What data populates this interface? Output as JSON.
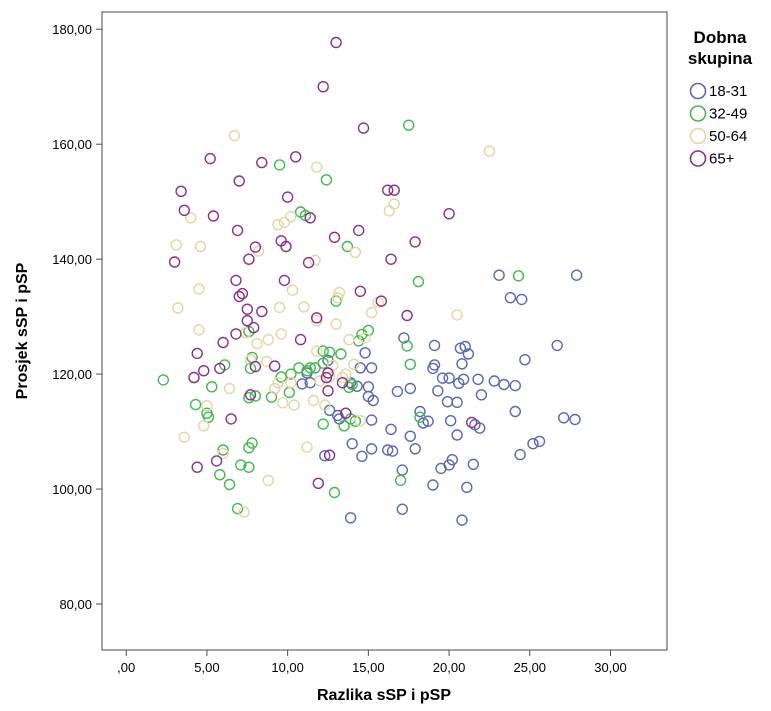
{
  "chart_data": {
    "type": "scatter",
    "xlabel": "Razlika sSP i pSP",
    "ylabel": "Prosjek sSP i pSP",
    "xlim": [
      -1.5,
      33.5
    ],
    "ylim": [
      72,
      183
    ],
    "x_ticks": [
      0,
      5,
      10,
      15,
      20,
      25,
      30
    ],
    "x_tick_labels": [
      ",00",
      "5,00",
      "10,00",
      "15,00",
      "20,00",
      "25,00",
      "30,00"
    ],
    "y_ticks": [
      80,
      100,
      120,
      140,
      160,
      180
    ],
    "y_tick_labels": [
      "80,00",
      "100,00",
      "120,00",
      "140,00",
      "160,00",
      "180,00"
    ],
    "grid": false,
    "legend": {
      "title_lines": [
        "Dobna",
        "skupina"
      ],
      "position": "right"
    },
    "marker": "open-circle",
    "series": [
      {
        "name": "18-31",
        "color": "#5b67b4",
        "points": [
          [
            13.9,
            95.0
          ],
          [
            17.1,
            96.5
          ],
          [
            20.8,
            94.6
          ],
          [
            12.3,
            105.8
          ],
          [
            14.0,
            107.9
          ],
          [
            14.6,
            105.7
          ],
          [
            15.2,
            107.0
          ],
          [
            16.2,
            106.8
          ],
          [
            16.5,
            106.6
          ],
          [
            17.1,
            103.3
          ],
          [
            17.6,
            109.2
          ],
          [
            17.9,
            107.0
          ],
          [
            18.4,
            111.5
          ],
          [
            18.2,
            113.5
          ],
          [
            18.7,
            111.8
          ],
          [
            19.0,
            100.7
          ],
          [
            19.5,
            103.6
          ],
          [
            20.0,
            104.2
          ],
          [
            20.1,
            111.9
          ],
          [
            20.5,
            109.4
          ],
          [
            20.5,
            115.1
          ],
          [
            20.2,
            105.1
          ],
          [
            21.1,
            100.3
          ],
          [
            21.5,
            104.3
          ],
          [
            21.6,
            111.2
          ],
          [
            21.9,
            110.6
          ],
          [
            22.0,
            116.4
          ],
          [
            19.9,
            115.2
          ],
          [
            19.3,
            117.1
          ],
          [
            19.0,
            121.0
          ],
          [
            19.6,
            119.3
          ],
          [
            20.0,
            119.3
          ],
          [
            19.1,
            121.6
          ],
          [
            20.6,
            118.4
          ],
          [
            20.8,
            121.8
          ],
          [
            20.9,
            119.1
          ],
          [
            21.2,
            123.5
          ],
          [
            20.7,
            124.5
          ],
          [
            21.0,
            124.8
          ],
          [
            19.1,
            125.0
          ],
          [
            17.2,
            126.3
          ],
          [
            16.8,
            117.0
          ],
          [
            17.6,
            117.5
          ],
          [
            15.0,
            116.1
          ],
          [
            15.0,
            117.8
          ],
          [
            15.3,
            115.4
          ],
          [
            14.3,
            117.9
          ],
          [
            13.9,
            118.5
          ],
          [
            14.5,
            121.1
          ],
          [
            15.2,
            121.1
          ],
          [
            14.8,
            123.7
          ],
          [
            12.5,
            122.4
          ],
          [
            11.4,
            118.5
          ],
          [
            10.9,
            118.3
          ],
          [
            11.2,
            120.2
          ],
          [
            13.2,
            112.2
          ],
          [
            12.6,
            113.7
          ],
          [
            15.2,
            112.0
          ],
          [
            16.4,
            110.4
          ],
          [
            21.8,
            119.1
          ],
          [
            22.8,
            118.8
          ],
          [
            23.4,
            118.2
          ],
          [
            24.1,
            118.0
          ],
          [
            24.7,
            122.5
          ],
          [
            24.1,
            113.5
          ],
          [
            24.4,
            106.0
          ],
          [
            25.2,
            107.9
          ],
          [
            25.6,
            108.3
          ],
          [
            23.8,
            133.3
          ],
          [
            24.5,
            133.0
          ],
          [
            23.1,
            137.2
          ],
          [
            26.7,
            125.0
          ],
          [
            27.1,
            112.4
          ],
          [
            27.8,
            112.1
          ],
          [
            27.9,
            137.2
          ],
          [
            13.1,
            112.8
          ]
        ]
      },
      {
        "name": "32-49",
        "color": "#44b84f",
        "points": [
          [
            2.3,
            119.0
          ],
          [
            4.3,
            114.7
          ],
          [
            5.0,
            113.2
          ],
          [
            5.1,
            112.5
          ],
          [
            5.3,
            117.8
          ],
          [
            5.8,
            102.5
          ],
          [
            6.0,
            106.8
          ],
          [
            6.4,
            100.8
          ],
          [
            6.9,
            96.6
          ],
          [
            7.1,
            104.2
          ],
          [
            7.6,
            103.8
          ],
          [
            7.6,
            107.2
          ],
          [
            7.8,
            108.0
          ],
          [
            7.6,
            115.9
          ],
          [
            8.0,
            116.2
          ],
          [
            7.7,
            121.0
          ],
          [
            7.8,
            122.9
          ],
          [
            7.6,
            127.4
          ],
          [
            6.1,
            121.6
          ],
          [
            9.5,
            156.4
          ],
          [
            9.6,
            119.5
          ],
          [
            10.1,
            116.8
          ],
          [
            10.7,
            121.1
          ],
          [
            11.2,
            120.6
          ],
          [
            11.4,
            121.1
          ],
          [
            11.7,
            121.1
          ],
          [
            12.2,
            121.9
          ],
          [
            12.6,
            123.8
          ],
          [
            12.2,
            124.0
          ],
          [
            13.3,
            123.5
          ],
          [
            14.6,
            126.9
          ],
          [
            15.0,
            127.6
          ],
          [
            14.4,
            125.8
          ],
          [
            14.0,
            118.2
          ],
          [
            13.8,
            117.7
          ],
          [
            13.5,
            111.0
          ],
          [
            12.2,
            111.3
          ],
          [
            13.9,
            112.2
          ],
          [
            14.2,
            111.8
          ],
          [
            12.9,
            99.4
          ],
          [
            17.0,
            101.5
          ],
          [
            17.4,
            124.9
          ],
          [
            17.6,
            121.7
          ],
          [
            18.1,
            136.1
          ],
          [
            17.5,
            163.3
          ],
          [
            12.4,
            153.8
          ],
          [
            10.8,
            148.2
          ],
          [
            11.1,
            147.6
          ],
          [
            13.0,
            132.7
          ],
          [
            13.7,
            142.2
          ],
          [
            18.2,
            112.5
          ],
          [
            24.3,
            137.1
          ],
          [
            9.0,
            116.0
          ],
          [
            10.2,
            120.0
          ]
        ]
      },
      {
        "name": "50-64",
        "color": "#e2d6a6",
        "points": [
          [
            3.6,
            109.0
          ],
          [
            4.0,
            147.2
          ],
          [
            3.1,
            142.5
          ],
          [
            3.2,
            131.5
          ],
          [
            4.5,
            127.7
          ],
          [
            4.5,
            134.8
          ],
          [
            4.6,
            142.2
          ],
          [
            4.2,
            119.5
          ],
          [
            4.8,
            111.0
          ],
          [
            5.0,
            114.5
          ],
          [
            6.0,
            106.2
          ],
          [
            6.4,
            117.5
          ],
          [
            6.7,
            161.5
          ],
          [
            7.3,
            96.0
          ],
          [
            7.7,
            122.5
          ],
          [
            8.1,
            125.3
          ],
          [
            8.2,
            141.4
          ],
          [
            8.7,
            122.2
          ],
          [
            8.8,
            101.5
          ],
          [
            9.2,
            117.5
          ],
          [
            9.4,
            118.5
          ],
          [
            9.5,
            131.6
          ],
          [
            9.6,
            127.0
          ],
          [
            9.7,
            115.0
          ],
          [
            9.4,
            146.0
          ],
          [
            9.8,
            146.4
          ],
          [
            10.3,
            134.6
          ],
          [
            10.2,
            118.5
          ],
          [
            10.4,
            114.6
          ],
          [
            10.2,
            147.4
          ],
          [
            11.0,
            131.7
          ],
          [
            11.2,
            107.3
          ],
          [
            11.6,
            115.4
          ],
          [
            11.7,
            139.8
          ],
          [
            11.8,
            156.0
          ],
          [
            11.8,
            124.0
          ],
          [
            11.8,
            129.3
          ],
          [
            12.0,
            118.8
          ],
          [
            12.3,
            114.6
          ],
          [
            12.6,
            119.5
          ],
          [
            12.8,
            121.5
          ],
          [
            13.0,
            128.7
          ],
          [
            13.1,
            133.3
          ],
          [
            13.2,
            134.2
          ],
          [
            13.4,
            119.4
          ],
          [
            13.6,
            120.0
          ],
          [
            14.1,
            121.7
          ],
          [
            14.2,
            141.2
          ],
          [
            14.5,
            111.9
          ],
          [
            14.8,
            126.3
          ],
          [
            15.2,
            130.7
          ],
          [
            15.6,
            132.5
          ],
          [
            16.3,
            148.4
          ],
          [
            16.6,
            149.6
          ],
          [
            20.5,
            130.3
          ],
          [
            22.5,
            158.8
          ],
          [
            7.4,
            127.2
          ],
          [
            8.8,
            126.0
          ],
          [
            13.8,
            126.0
          ]
        ]
      },
      {
        "name": "65+",
        "color": "#8b2f8b",
        "points": [
          [
            3.0,
            139.5
          ],
          [
            3.4,
            151.8
          ],
          [
            3.6,
            148.5
          ],
          [
            4.2,
            119.4
          ],
          [
            4.4,
            103.8
          ],
          [
            4.4,
            123.6
          ],
          [
            4.8,
            120.6
          ],
          [
            5.2,
            157.5
          ],
          [
            5.4,
            147.5
          ],
          [
            5.6,
            104.9
          ],
          [
            5.8,
            121.0
          ],
          [
            6.0,
            125.5
          ],
          [
            6.5,
            112.2
          ],
          [
            6.8,
            127.0
          ],
          [
            6.8,
            136.3
          ],
          [
            6.9,
            145.0
          ],
          [
            7.0,
            153.6
          ],
          [
            7.0,
            133.5
          ],
          [
            7.2,
            134.0
          ],
          [
            7.5,
            129.3
          ],
          [
            7.5,
            131.3
          ],
          [
            7.6,
            140.0
          ],
          [
            7.7,
            116.4
          ],
          [
            7.9,
            128.1
          ],
          [
            8.0,
            121.3
          ],
          [
            8.0,
            142.1
          ],
          [
            8.4,
            156.8
          ],
          [
            8.4,
            130.9
          ],
          [
            9.2,
            121.4
          ],
          [
            9.6,
            143.2
          ],
          [
            9.8,
            136.3
          ],
          [
            9.9,
            142.2
          ],
          [
            10.0,
            150.8
          ],
          [
            10.5,
            157.8
          ],
          [
            10.8,
            126.0
          ],
          [
            11.3,
            139.4
          ],
          [
            11.4,
            147.2
          ],
          [
            11.8,
            129.8
          ],
          [
            11.9,
            101.0
          ],
          [
            12.2,
            170.0
          ],
          [
            12.5,
            117.1
          ],
          [
            12.5,
            120.2
          ],
          [
            12.6,
            105.9
          ],
          [
            12.9,
            143.8
          ],
          [
            13.0,
            177.7
          ],
          [
            13.4,
            118.5
          ],
          [
            13.6,
            113.2
          ],
          [
            14.4,
            145.0
          ],
          [
            14.5,
            134.4
          ],
          [
            14.7,
            162.8
          ],
          [
            15.8,
            132.7
          ],
          [
            16.2,
            152.0
          ],
          [
            16.4,
            140.0
          ],
          [
            16.6,
            152.0
          ],
          [
            17.4,
            130.2
          ],
          [
            17.9,
            143.0
          ],
          [
            20.0,
            147.9
          ],
          [
            21.4,
            111.6
          ],
          [
            12.4,
            119.4
          ]
        ]
      }
    ]
  }
}
